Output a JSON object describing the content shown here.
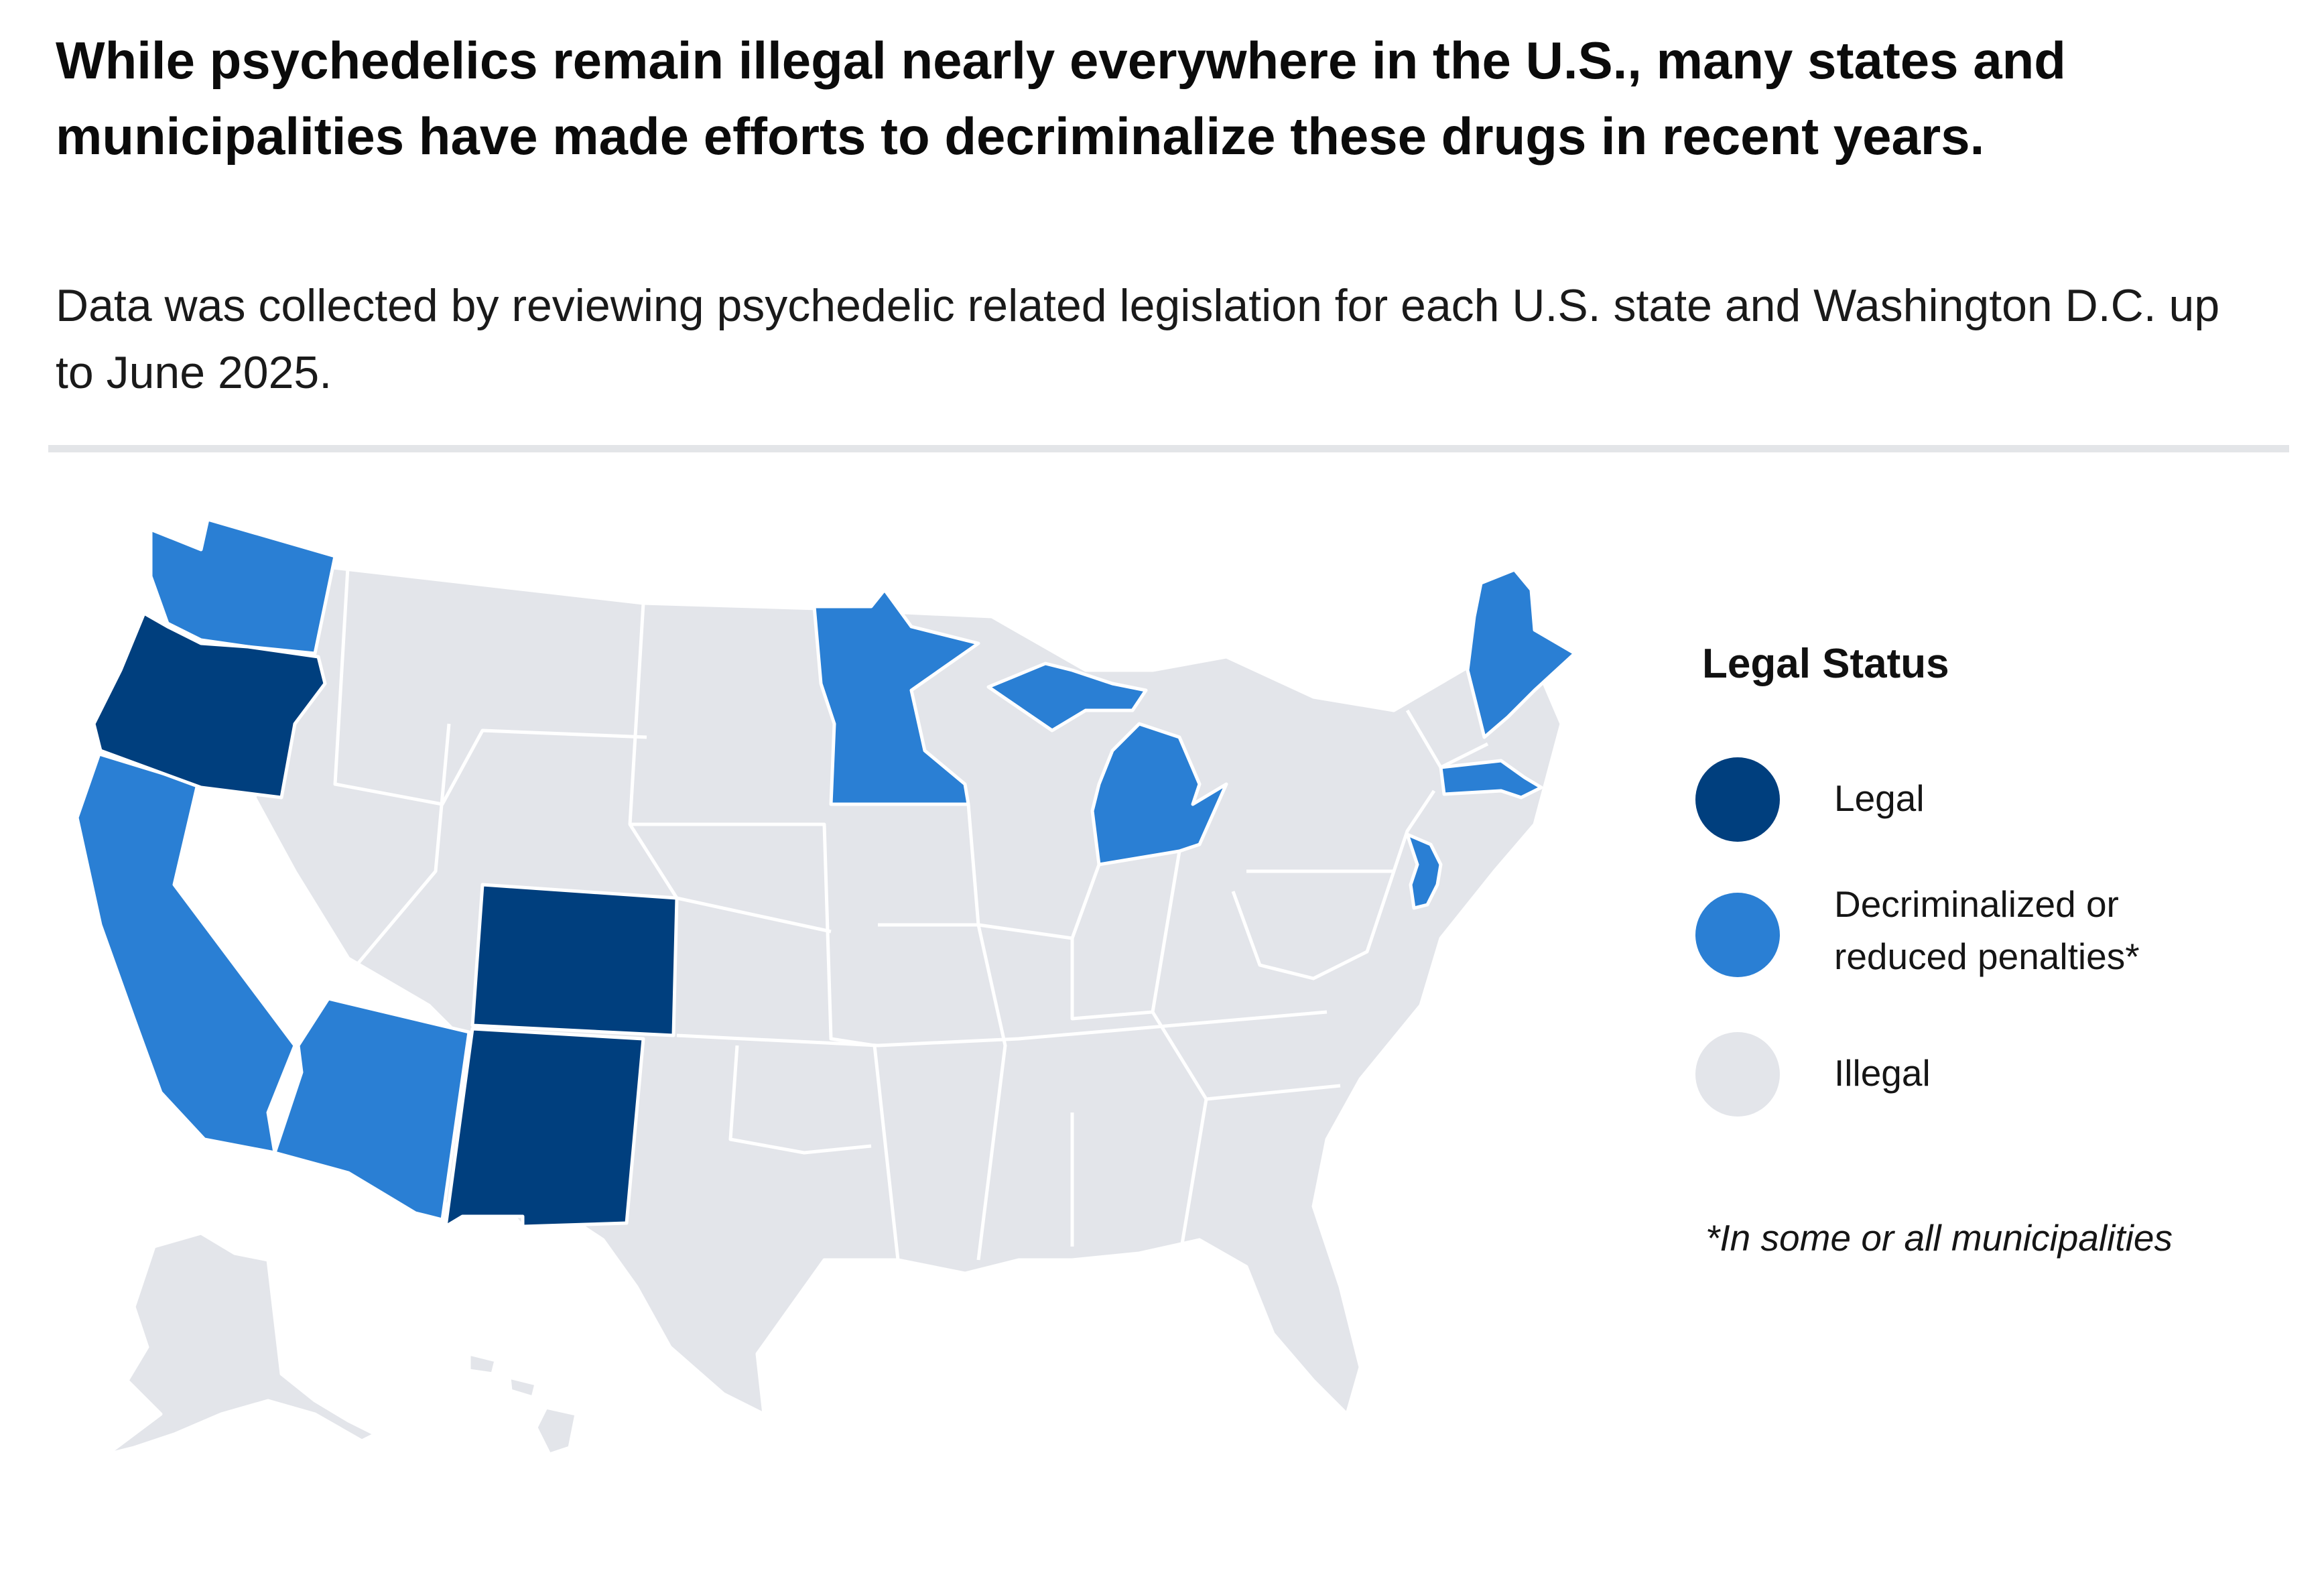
{
  "headline": "While psychedelics remain illegal nearly everywhere in the U.S., many states and municipalities have made efforts to decriminalize these drugs in recent years.",
  "subhead": "Data was collected by reviewing psychedelic related legislation for each U.S. state and Washington D.C.  up to June 2025.",
  "colors": {
    "legal": "#003f7e",
    "decriminalized": "#2a7fd4",
    "illegal": "#e3e5ea",
    "divider": "#e3e5e8"
  },
  "legend": {
    "title": "Legal Status",
    "items": [
      {
        "key": "legal",
        "label": "Legal"
      },
      {
        "key": "decriminalized",
        "label": "Decriminalized or\nreduced penalties*"
      },
      {
        "key": "illegal",
        "label": "Illegal"
      }
    ],
    "footnote": "*In some or all municipalities"
  },
  "states": {
    "legal": [
      "Oregon",
      "Colorado",
      "New Mexico"
    ],
    "decriminalized": [
      "Washington",
      "California",
      "Arizona",
      "Minnesota",
      "Michigan",
      "Maine",
      "Massachusetts",
      "New Jersey"
    ],
    "illegal": [
      "All other states",
      "Alaska",
      "Hawaii"
    ]
  }
}
